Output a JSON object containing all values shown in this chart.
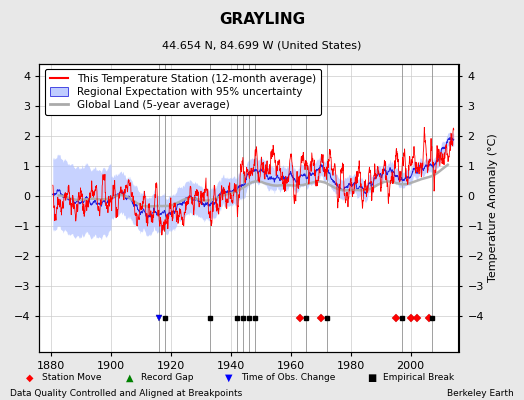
{
  "title": "GRAYLING",
  "subtitle": "44.654 N, 84.699 W (United States)",
  "xlabel_note": "Data Quality Controlled and Aligned at Breakpoints",
  "credit": "Berkeley Earth",
  "ylabel": "Temperature Anomaly (°C)",
  "xlim": [
    1876,
    2016
  ],
  "ylim": [
    -5.2,
    4.4
  ],
  "yticks": [
    -4,
    -3,
    -2,
    -1,
    0,
    1,
    2,
    3,
    4
  ],
  "xticks": [
    1880,
    1900,
    1920,
    1940,
    1960,
    1980,
    2000
  ],
  "background_color": "#e8e8e8",
  "plot_bg_color": "#ffffff",
  "grid_color": "#cccccc",
  "start_year": 1880,
  "end_year": 2014,
  "station_moves": [
    1963,
    1970,
    1995,
    2000,
    2002,
    2006
  ],
  "record_gaps": [],
  "obs_changes": [
    1916
  ],
  "empirical_breaks": [
    1918,
    1933,
    1942,
    1944,
    1946,
    1948,
    1965,
    1972,
    1997,
    2007
  ],
  "uncertainty_color": "#b0c0ff",
  "regional_color": "#2020dd",
  "station_color": "#ff0000",
  "global_color": "#aaaaaa",
  "title_fontsize": 11,
  "subtitle_fontsize": 8,
  "axis_fontsize": 8,
  "legend_fontsize": 7.5
}
